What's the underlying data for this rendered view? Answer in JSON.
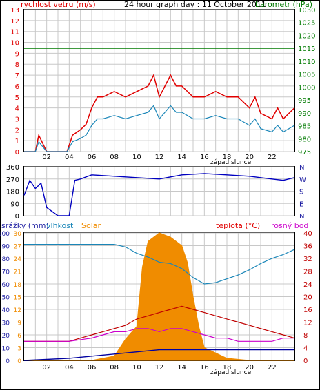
{
  "colors": {
    "wind": "#e00000",
    "pressure": "#007a00",
    "gust": "#e00000",
    "windAvg": "#1a86b8",
    "direction": "#0000c0",
    "humidity": "#1a86b8",
    "solar": "#f08c00",
    "temperature": "#c00000",
    "dewpoint": "#cc00cc",
    "rain": "#0000a0",
    "grid": "#c8c8c8",
    "axisRed": "#e00000",
    "axisGreen": "#007a00",
    "axisBlue": "#1a1aa0"
  },
  "top": {
    "left_title": "rychlost vetru (m/s)",
    "center_title": "24 hour graph day : 11 October 2011",
    "right_title": "barometr (hPa)",
    "left_ticks": [
      "13",
      "12",
      "11",
      "10",
      "9",
      "8",
      "7",
      "6",
      "5",
      "4",
      "3",
      "2",
      "1",
      "0"
    ],
    "right_ticks": [
      "1030",
      "1025",
      "1020",
      "1015",
      "1010",
      "1005",
      "1000",
      "995",
      "990",
      "985",
      "980",
      "975"
    ],
    "sunset_label": "západ slunce"
  },
  "mid": {
    "left_ticks": [
      "360",
      "270",
      "180",
      "90",
      "0"
    ],
    "right_ticks": [
      "N",
      "W",
      "S",
      "E",
      "N"
    ]
  },
  "bottom": {
    "legend_rain": "srážky (mm)",
    "legend_humidity": "vlhkost",
    "legend_solar": "Solar",
    "legend_temp": "teplota (°C)",
    "legend_dew": "rosný bod",
    "left_ticks_a": [
      "100",
      "90",
      "80",
      "70",
      "60",
      "50",
      "40",
      "30",
      "20",
      "10",
      "0"
    ],
    "left_ticks_b": [
      "30",
      "27",
      "24",
      "21",
      "18",
      "15",
      "12",
      "9",
      "6",
      "3",
      "0"
    ],
    "right_ticks": [
      "40",
      "36",
      "32",
      "28",
      "24",
      "20",
      "16",
      "12",
      "8",
      "4",
      "0"
    ],
    "sunset_label": "západ slunce"
  },
  "x_ticks": [
    "02",
    "04",
    "06",
    "08",
    "10",
    "12",
    "14",
    "16",
    "18",
    "20",
    "22"
  ],
  "chart_data": [
    {
      "type": "line",
      "title": "24 hour graph day : 11 October 2011",
      "series": [
        {
          "name": "rychlost vetru (m/s)",
          "x": [
            0,
            1,
            1.3,
            2,
            3,
            3.8,
            4.3,
            5,
            5.5,
            6,
            6.5,
            7,
            8,
            9,
            10,
            11,
            11.5,
            12,
            12.5,
            13,
            13.5,
            14,
            15,
            16,
            17,
            18,
            19,
            20,
            20.5,
            21,
            22,
            22.5,
            23,
            24
          ],
          "values": [
            0,
            0,
            1.5,
            0,
            0,
            0,
            1.5,
            2,
            2.5,
            4,
            5,
            5,
            5.5,
            5,
            5.5,
            6,
            7,
            5,
            6,
            7,
            6,
            6,
            5,
            5,
            5.5,
            5,
            5,
            4,
            5,
            3.5,
            3,
            4,
            3,
            4
          ]
        },
        {
          "name": "barometr (hPa)",
          "x": [
            0,
            1,
            2,
            3,
            4,
            5,
            6,
            8,
            10,
            12,
            14,
            16,
            18,
            20,
            22,
            24
          ],
          "values": [
            1015,
            1015,
            1015,
            1015,
            1015,
            1015,
            1015,
            1015,
            1015,
            1015,
            1015,
            1015,
            1015,
            1015,
            1015,
            1015
          ]
        }
      ],
      "ylim_left": [
        0,
        13
      ],
      "ylim_right": [
        975,
        1030
      ]
    },
    {
      "type": "scatter",
      "series": [
        {
          "name": "wind direction",
          "x": [
            0,
            0.5,
            1,
            1.5,
            2,
            3,
            4,
            4.5,
            5,
            6,
            8,
            10,
            12,
            14,
            16,
            18,
            20,
            22,
            23,
            24
          ],
          "values": [
            150,
            260,
            200,
            240,
            60,
            0,
            0,
            260,
            270,
            300,
            290,
            280,
            270,
            300,
            310,
            300,
            290,
            270,
            260,
            280
          ]
        }
      ],
      "ylim": [
        0,
        360
      ]
    },
    {
      "type": "line",
      "series": [
        {
          "name": "vlhkost",
          "x": [
            0,
            2,
            4,
            6,
            8,
            9,
            10,
            11,
            12,
            13,
            14,
            15,
            16,
            17,
            18,
            19,
            20,
            21,
            22,
            23,
            24
          ],
          "values": [
            91,
            91,
            91,
            91,
            91,
            89,
            84,
            81,
            77,
            76,
            72,
            65,
            60,
            61,
            64,
            67,
            71,
            76,
            80,
            83,
            87
          ]
        },
        {
          "name": "teplota (°C)",
          "x": [
            0,
            2,
            4,
            6,
            7,
            8,
            9,
            10,
            11,
            12,
            13,
            14,
            15,
            16,
            17,
            18,
            19,
            20,
            21,
            22,
            23,
            24
          ],
          "values": [
            6,
            6,
            6,
            8,
            9,
            10,
            11,
            13,
            14,
            15,
            16,
            17,
            16,
            15,
            14,
            13,
            12,
            11,
            10,
            9,
            8,
            7
          ]
        },
        {
          "name": "rosný bod",
          "x": [
            0,
            2,
            4,
            6,
            7,
            8,
            9,
            10,
            11,
            12,
            13,
            14,
            15,
            16,
            17,
            18,
            19,
            20,
            21,
            22,
            23,
            24
          ],
          "values": [
            6,
            6,
            6,
            7,
            8,
            9,
            9,
            10,
            10,
            9,
            10,
            10,
            9,
            8,
            7,
            7,
            6,
            6,
            6,
            6,
            7,
            7
          ]
        },
        {
          "name": "Solar",
          "x": [
            0,
            2,
            4,
            6,
            7,
            8,
            8.5,
            9,
            10,
            10.5,
            11,
            12,
            13,
            14,
            14.5,
            15,
            15.5,
            16,
            18,
            20,
            22,
            24
          ],
          "values": [
            0,
            0,
            0,
            0,
            0.5,
            1,
            3,
            5,
            8,
            22,
            28,
            30,
            29,
            27,
            23,
            15,
            8,
            3,
            0.5,
            0,
            0,
            0
          ]
        },
        {
          "name": "srážky (mm)",
          "x": [
            0,
            4,
            6,
            8,
            10,
            12,
            14,
            16,
            18,
            20,
            22,
            24
          ],
          "values": [
            0,
            0.5,
            1,
            1.5,
            2,
            2.5,
            2.5,
            2.5,
            2.5,
            2.5,
            2.5,
            2.5
          ]
        }
      ],
      "ylim_left": [
        0,
        100
      ],
      "ylim_right": [
        0,
        40
      ]
    }
  ]
}
